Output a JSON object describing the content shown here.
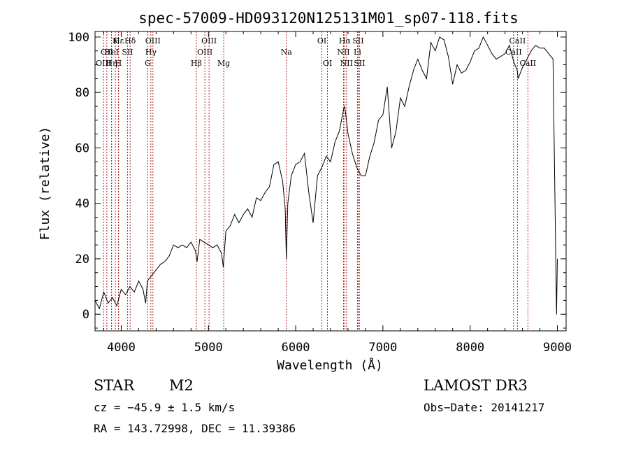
{
  "chart_data": {
    "type": "line",
    "title": "spec-57009-HD093120N125131M01_sp07-118.fits",
    "xlabel": "Wavelength (Å)",
    "ylabel": "Flux (relative)",
    "xlim": [
      3700,
      9100
    ],
    "ylim": [
      -6,
      102
    ],
    "xticks": [
      4000,
      5000,
      6000,
      7000,
      8000,
      9000
    ],
    "yticks": [
      0,
      20,
      40,
      60,
      80,
      100
    ],
    "grid": false,
    "series": [
      {
        "x": [
          3700,
          3750,
          3800,
          3850,
          3900,
          3950,
          4000,
          4050,
          4100,
          4150,
          4200,
          4250,
          4280,
          4300,
          4350,
          4400,
          4450,
          4500,
          4550,
          4600,
          4650,
          4700,
          4750,
          4800,
          4850,
          4870,
          4900,
          4950,
          5000,
          5050,
          5100,
          5150,
          5170,
          5200,
          5250,
          5300,
          5350,
          5400,
          5450,
          5500,
          5550,
          5600,
          5650,
          5700,
          5750,
          5800,
          5850,
          5880,
          5893,
          5910,
          5950,
          6000,
          6050,
          6100,
          6150,
          6200,
          6250,
          6300,
          6350,
          6400,
          6450,
          6500,
          6550,
          6563,
          6600,
          6650,
          6700,
          6750,
          6800,
          6850,
          6900,
          6950,
          7000,
          7050,
          7100,
          7150,
          7200,
          7250,
          7300,
          7350,
          7400,
          7450,
          7500,
          7550,
          7600,
          7650,
          7700,
          7750,
          7800,
          7850,
          7900,
          7950,
          8000,
          8050,
          8100,
          8150,
          8200,
          8250,
          8300,
          8350,
          8400,
          8450,
          8500,
          8540,
          8550,
          8600,
          8650,
          8700,
          8750,
          8800,
          8850,
          8900,
          8950,
          8990,
          9000
        ],
        "y": [
          5,
          2,
          8,
          4,
          6,
          3,
          9,
          7,
          10,
          8,
          12,
          9,
          4,
          12,
          14,
          16,
          18,
          19,
          21,
          25,
          24,
          25,
          24,
          26,
          23,
          19,
          27,
          26,
          25,
          24,
          25,
          22,
          17,
          30,
          32,
          36,
          33,
          36,
          38,
          35,
          42,
          41,
          44,
          46,
          54,
          55,
          48,
          38,
          20,
          40,
          50,
          54,
          55,
          58,
          44,
          33,
          50,
          53,
          57,
          55,
          62,
          66,
          74,
          75,
          65,
          58,
          53,
          50,
          50,
          57,
          62,
          70,
          72,
          82,
          60,
          66,
          78,
          75,
          82,
          88,
          92,
          88,
          85,
          98,
          95,
          100,
          99,
          93,
          83,
          90,
          87,
          88,
          91,
          95,
          96,
          100,
          97,
          94,
          92,
          93,
          94,
          97,
          91,
          88,
          85,
          89,
          92,
          95,
          97,
          96,
          96,
          94,
          92,
          0,
          20
        ]
      }
    ],
    "line_markers": [
      {
        "wl": 3797,
        "row": 2,
        "label": "OIII"
      },
      {
        "wl": 3835,
        "row": 1,
        "label": "OII"
      },
      {
        "wl": 3889,
        "row": 2,
        "label": "Hη"
      },
      {
        "wl": 3889,
        "row": 1,
        "label": "HeI"
      },
      {
        "wl": 3933,
        "row": 0,
        "label": "K"
      },
      {
        "wl": 3968,
        "row": 2,
        "label": "H"
      },
      {
        "wl": 3970,
        "row": 0,
        "label": "Hε"
      },
      {
        "wl": 4072,
        "row": 1,
        "label": "SII"
      },
      {
        "wl": 4102,
        "row": 0,
        "label": "Hδ"
      },
      {
        "wl": 4304,
        "row": 2,
        "label": "G"
      },
      {
        "wl": 4340,
        "row": 1,
        "label": "Hγ"
      },
      {
        "wl": 4363,
        "row": 0,
        "label": "OIII"
      },
      {
        "wl": 4861,
        "row": 2,
        "label": "Hβ"
      },
      {
        "wl": 4959,
        "row": 1,
        "label": "OIII"
      },
      {
        "wl": 5007,
        "row": 0,
        "label": "OIII"
      },
      {
        "wl": 5175,
        "row": 2,
        "label": "Mg"
      },
      {
        "wl": 5893,
        "row": 1,
        "label": "Na"
      },
      {
        "wl": 6300,
        "row": 0,
        "label": "OI"
      },
      {
        "wl": 6364,
        "row": 2,
        "label": "OI"
      },
      {
        "wl": 6548,
        "row": 1,
        "label": "NII"
      },
      {
        "wl": 6563,
        "row": 0,
        "label": "Hα"
      },
      {
        "wl": 6583,
        "row": 2,
        "label": "NII"
      },
      {
        "wl": 6708,
        "row": 1,
        "label": "Li"
      },
      {
        "wl": 6716,
        "row": 0,
        "label": "SII"
      },
      {
        "wl": 6731,
        "row": 2,
        "label": "SII"
      },
      {
        "wl": 8498,
        "row": 1,
        "label": "CaII"
      },
      {
        "wl": 8542,
        "row": 0,
        "label": "CaII"
      },
      {
        "wl": 8662,
        "row": 2,
        "label": "CaII"
      }
    ],
    "marker_color": "#b22222"
  },
  "info": {
    "class": "STAR",
    "subclass": "M2",
    "survey": "LAMOST DR3",
    "cz": "cz = −45.9 ± 1.5 km/s",
    "obs_date": "Obs−Date: 20141217",
    "radec": "RA = 143.72998, DEC =  11.39386"
  }
}
